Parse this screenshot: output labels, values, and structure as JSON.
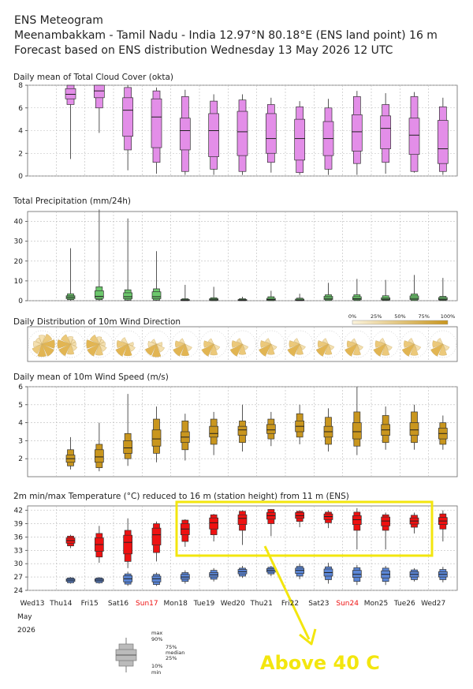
{
  "header": {
    "title": "ENS Meteogram",
    "location": "Meenambakkam - Tamil Nadu - India 12.97°N 80.18°E (ENS land point) 16 m",
    "forecast": "Forecast based on ENS distribution Wednesday 13 May 2026 12 UTC"
  },
  "annotation": {
    "text": "Above 40 C",
    "color": "#f3e60e"
  },
  "colors": {
    "cloud": "#e38ee8",
    "precip": "#6cc86c",
    "wind_speed": "#c9961e",
    "tmax": "#ee1111",
    "tmin": "#5b86d6",
    "highlight": "#f3e60e",
    "weekend": "#ee1111"
  },
  "chart_data": [
    {
      "type": "boxplot",
      "title": "Daily mean of Total Cloud Cover (okta)",
      "ylim": [
        0,
        8
      ],
      "yticks": [
        0,
        2,
        4,
        6,
        8
      ],
      "grid": true,
      "categories": [
        "Thu14",
        "Fri15",
        "Sat16",
        "Sun17",
        "Mon18",
        "Tue19",
        "Wed20",
        "Thu21",
        "Fri22",
        "Sat23",
        "Sun24",
        "Mon25",
        "Tue26",
        "Wed27"
      ],
      "stats": [
        {
          "min": 1.5,
          "p10": 6.3,
          "p25": 6.8,
          "median": 7.2,
          "p75": 7.7,
          "p90": 8.0,
          "max": 8.0
        },
        {
          "min": 3.8,
          "p10": 6.0,
          "p25": 6.9,
          "median": 7.5,
          "p75": 8.0,
          "p90": 8.0,
          "max": 8.0
        },
        {
          "min": 0.5,
          "p10": 2.3,
          "p25": 3.5,
          "median": 5.8,
          "p75": 6.9,
          "p90": 7.8,
          "max": 8.0
        },
        {
          "min": 0.2,
          "p10": 1.2,
          "p25": 2.5,
          "median": 5.2,
          "p75": 6.8,
          "p90": 7.5,
          "max": 7.8
        },
        {
          "min": 0.1,
          "p10": 0.4,
          "p25": 2.3,
          "median": 4.0,
          "p75": 5.1,
          "p90": 7.0,
          "max": 7.6
        },
        {
          "min": 0.1,
          "p10": 0.6,
          "p25": 1.7,
          "median": 4.0,
          "p75": 5.5,
          "p90": 6.6,
          "max": 7.2
        },
        {
          "min": 0.1,
          "p10": 0.4,
          "p25": 1.8,
          "median": 3.9,
          "p75": 5.7,
          "p90": 6.7,
          "max": 7.2
        },
        {
          "min": 0.3,
          "p10": 1.2,
          "p25": 2.0,
          "median": 3.3,
          "p75": 5.5,
          "p90": 6.3,
          "max": 6.9
        },
        {
          "min": 0.1,
          "p10": 0.3,
          "p25": 1.4,
          "median": 3.3,
          "p75": 5.0,
          "p90": 6.1,
          "max": 6.6
        },
        {
          "min": 0.1,
          "p10": 0.6,
          "p25": 1.8,
          "median": 3.3,
          "p75": 4.8,
          "p90": 6.0,
          "max": 6.8
        },
        {
          "min": 0.1,
          "p10": 1.1,
          "p25": 2.2,
          "median": 3.9,
          "p75": 5.4,
          "p90": 7.0,
          "max": 7.5
        },
        {
          "min": 0.2,
          "p10": 1.2,
          "p25": 2.4,
          "median": 4.2,
          "p75": 5.3,
          "p90": 6.3,
          "max": 7.3
        },
        {
          "min": 0.3,
          "p10": 0.4,
          "p25": 1.9,
          "median": 3.6,
          "p75": 5.1,
          "p90": 7.0,
          "max": 7.4
        },
        {
          "min": 0.1,
          "p10": 0.4,
          "p25": 1.1,
          "median": 2.4,
          "p75": 4.9,
          "p90": 6.1,
          "max": 6.9
        }
      ]
    },
    {
      "type": "boxplot",
      "title": "Total Precipitation (mm/24h)",
      "ylim": [
        0,
        45
      ],
      "yticks": [
        0,
        10,
        20,
        30,
        40
      ],
      "grid": true,
      "categories": [
        "Thu14",
        "Fri15",
        "Sat16",
        "Sun17",
        "Mon18",
        "Tue19",
        "Wed20",
        "Thu21",
        "Fri22",
        "Sat23",
        "Sun24",
        "Mon25",
        "Tue26",
        "Wed27"
      ],
      "stats": [
        {
          "min": 0,
          "p10": 0.5,
          "p25": 1.0,
          "median": 1.8,
          "p75": 2.5,
          "p90": 3.5,
          "max": 26.5
        },
        {
          "min": 0,
          "p10": 0.5,
          "p25": 1.2,
          "median": 2.2,
          "p75": 5.0,
          "p90": 7.0,
          "max": 46
        },
        {
          "min": 0,
          "p10": 0.3,
          "p25": 1.0,
          "median": 2.0,
          "p75": 4.0,
          "p90": 5.5,
          "max": 41.5
        },
        {
          "min": 0,
          "p10": 0.3,
          "p25": 1.0,
          "median": 2.0,
          "p75": 4.5,
          "p90": 6.0,
          "max": 25.0
        },
        {
          "min": 0,
          "p10": 0,
          "p25": 0.1,
          "median": 0.3,
          "p75": 0.6,
          "p90": 1.0,
          "max": 8.0
        },
        {
          "min": 0,
          "p10": 0,
          "p25": 0.2,
          "median": 0.5,
          "p75": 1.0,
          "p90": 1.5,
          "max": 7.0
        },
        {
          "min": 0,
          "p10": 0,
          "p25": 0.1,
          "median": 0.3,
          "p75": 0.6,
          "p90": 1.0,
          "max": 2.0
        },
        {
          "min": 0,
          "p10": 0,
          "p25": 0.2,
          "median": 0.6,
          "p75": 1.2,
          "p90": 2.0,
          "max": 5.0
        },
        {
          "min": 0,
          "p10": 0,
          "p25": 0.1,
          "median": 0.3,
          "p75": 0.8,
          "p90": 1.3,
          "max": 3.5
        },
        {
          "min": 0,
          "p10": 0.1,
          "p25": 0.6,
          "median": 1.2,
          "p75": 2.2,
          "p90": 3.0,
          "max": 9.0
        },
        {
          "min": 0,
          "p10": 0.1,
          "p25": 0.5,
          "median": 1.0,
          "p75": 2.0,
          "p90": 3.0,
          "max": 11.0
        },
        {
          "min": 0,
          "p10": 0.1,
          "p25": 0.4,
          "median": 0.8,
          "p75": 1.5,
          "p90": 2.5,
          "max": 10.5
        },
        {
          "min": 0,
          "p10": 0.1,
          "p25": 0.6,
          "median": 1.2,
          "p75": 2.4,
          "p90": 3.4,
          "max": 13.0
        },
        {
          "min": 0,
          "p10": 0.1,
          "p25": 0.4,
          "median": 0.8,
          "p75": 1.6,
          "p90": 2.2,
          "max": 11.5
        }
      ]
    },
    {
      "type": "windrose",
      "title": "Daily Distribution of 10m Wind Direction",
      "legend": [
        "0%",
        "25%",
        "50%",
        "75%",
        "100%"
      ],
      "categories": [
        "Wed13",
        "Thu14",
        "Fri15",
        "Sat16",
        "Sun17",
        "Mon18",
        "Tue19",
        "Wed20",
        "Thu21",
        "Fri22",
        "Sat23",
        "Sun24",
        "Mon25",
        "Tue26",
        "Wed27"
      ],
      "dominant_direction_deg": [
        130,
        250,
        240,
        220,
        200,
        215,
        220,
        225,
        225,
        225,
        225,
        220,
        220,
        220,
        220
      ],
      "spread": [
        1.0,
        0.55,
        0.6,
        0.4,
        0.3,
        0.3,
        0.25,
        0.25,
        0.25,
        0.25,
        0.25,
        0.25,
        0.3,
        0.3,
        0.3
      ]
    },
    {
      "type": "boxplot",
      "title": "Daily mean of 10m Wind Speed (m/s)",
      "ylim": [
        1,
        6
      ],
      "yticks": [
        2,
        3,
        4,
        5,
        6
      ],
      "grid": true,
      "categories": [
        "Thu14",
        "Fri15",
        "Sat16",
        "Sun17",
        "Mon18",
        "Tue19",
        "Wed20",
        "Thu21",
        "Fri22",
        "Sat23",
        "Sun24",
        "Mon25",
        "Tue26",
        "Wed27"
      ],
      "stats": [
        {
          "min": 1.4,
          "p10": 1.6,
          "p25": 1.8,
          "median": 2.0,
          "p75": 2.2,
          "p90": 2.5,
          "max": 3.2
        },
        {
          "min": 1.3,
          "p10": 1.5,
          "p25": 1.8,
          "median": 2.1,
          "p75": 2.5,
          "p90": 2.8,
          "max": 4.0
        },
        {
          "min": 1.6,
          "p10": 2.0,
          "p25": 2.3,
          "median": 2.6,
          "p75": 3.0,
          "p90": 3.4,
          "max": 5.6
        },
        {
          "min": 1.8,
          "p10": 2.3,
          "p25": 2.7,
          "median": 3.1,
          "p75": 3.6,
          "p90": 4.2,
          "max": 4.9
        },
        {
          "min": 1.9,
          "p10": 2.5,
          "p25": 2.9,
          "median": 3.2,
          "p75": 3.5,
          "p90": 4.1,
          "max": 4.5
        },
        {
          "min": 2.2,
          "p10": 2.8,
          "p25": 3.2,
          "median": 3.4,
          "p75": 3.8,
          "p90": 4.2,
          "max": 4.6
        },
        {
          "min": 2.4,
          "p10": 2.9,
          "p25": 3.3,
          "median": 3.6,
          "p75": 3.8,
          "p90": 4.1,
          "max": 5.0
        },
        {
          "min": 2.7,
          "p10": 3.1,
          "p25": 3.4,
          "median": 3.6,
          "p75": 3.9,
          "p90": 4.2,
          "max": 4.6
        },
        {
          "min": 2.8,
          "p10": 3.2,
          "p25": 3.5,
          "median": 3.8,
          "p75": 4.1,
          "p90": 4.5,
          "max": 5.0
        },
        {
          "min": 2.4,
          "p10": 2.8,
          "p25": 3.2,
          "median": 3.5,
          "p75": 3.8,
          "p90": 4.3,
          "max": 4.8
        },
        {
          "min": 2.2,
          "p10": 2.7,
          "p25": 3.1,
          "median": 3.5,
          "p75": 4.0,
          "p90": 4.6,
          "max": 6.0
        },
        {
          "min": 2.5,
          "p10": 2.9,
          "p25": 3.3,
          "median": 3.6,
          "p75": 3.9,
          "p90": 4.4,
          "max": 4.9
        },
        {
          "min": 2.5,
          "p10": 2.9,
          "p25": 3.3,
          "median": 3.6,
          "p75": 4.0,
          "p90": 4.6,
          "max": 5.0
        },
        {
          "min": 2.5,
          "p10": 2.8,
          "p25": 3.1,
          "median": 3.4,
          "p75": 3.7,
          "p90": 4.0,
          "max": 4.4
        }
      ]
    },
    {
      "type": "boxplot",
      "title": "2m min/max Temperature (°C) reduced to 16 m (station height) from 11 m (ENS)",
      "ylim": [
        24,
        43
      ],
      "yticks": [
        24,
        27,
        30,
        33,
        36,
        39,
        42
      ],
      "grid": true,
      "categories": [
        "Thu14",
        "Fri15",
        "Sat16",
        "Sun17",
        "Mon18",
        "Tue19",
        "Wed20",
        "Thu21",
        "Fri22",
        "Sat23",
        "Sun24",
        "Mon25",
        "Tue26",
        "Wed27"
      ],
      "series": [
        {
          "name": "max",
          "stats": [
            {
              "min": 33.5,
              "p10": 34.0,
              "p25": 34.6,
              "median": 35.2,
              "p75": 35.8,
              "p90": 36.2,
              "max": 36.5
            },
            {
              "min": 30.2,
              "p10": 31.5,
              "p25": 32.8,
              "median": 34.3,
              "p75": 35.8,
              "p90": 36.8,
              "max": 38.5
            },
            {
              "min": 29.0,
              "p10": 30.5,
              "p25": 32.2,
              "median": 34.8,
              "p75": 36.4,
              "p90": 37.5,
              "max": 40.2
            },
            {
              "min": 30.5,
              "p10": 32.5,
              "p25": 34.2,
              "median": 36.5,
              "p75": 38.0,
              "p90": 39.0,
              "max": 39.5
            },
            {
              "min": 33.8,
              "p10": 35.0,
              "p25": 36.5,
              "median": 37.8,
              "p75": 39.0,
              "p90": 39.8,
              "max": 40.0
            },
            {
              "min": 35.0,
              "p10": 36.5,
              "p25": 37.8,
              "median": 39.2,
              "p75": 40.3,
              "p90": 41.0,
              "max": 41.2
            },
            {
              "min": 34.2,
              "p10": 37.5,
              "p25": 38.8,
              "median": 40.2,
              "p75": 41.0,
              "p90": 41.8,
              "max": 42.0
            },
            {
              "min": 36.2,
              "p10": 39.0,
              "p25": 40.0,
              "median": 40.8,
              "p75": 41.5,
              "p90": 42.2,
              "max": 42.3
            },
            {
              "min": 38.2,
              "p10": 39.5,
              "p25": 40.2,
              "median": 40.8,
              "p75": 41.5,
              "p90": 41.8,
              "max": 42.0
            },
            {
              "min": 38.0,
              "p10": 39.2,
              "p25": 39.9,
              "median": 40.6,
              "p75": 41.2,
              "p90": 41.6,
              "max": 42.0
            },
            {
              "min": 33.2,
              "p10": 37.5,
              "p25": 38.8,
              "median": 39.9,
              "p75": 40.8,
              "p90": 41.6,
              "max": 42.5
            },
            {
              "min": 33.2,
              "p10": 37.5,
              "p25": 38.5,
              "median": 39.6,
              "p75": 40.5,
              "p90": 41.0,
              "max": 41.5
            },
            {
              "min": 36.8,
              "p10": 38.2,
              "p25": 38.9,
              "median": 39.6,
              "p75": 40.3,
              "p90": 40.9,
              "max": 41.5
            },
            {
              "min": 35.0,
              "p10": 37.8,
              "p25": 38.8,
              "median": 39.6,
              "p75": 40.4,
              "p90": 41.2,
              "max": 42.0
            }
          ]
        },
        {
          "name": "min",
          "stats": [
            {
              "min": 25.5,
              "p10": 25.7,
              "p25": 26.0,
              "median": 26.3,
              "p75": 26.6,
              "p90": 26.8,
              "max": 27.0
            },
            {
              "min": 25.5,
              "p10": 25.7,
              "p25": 26.0,
              "median": 26.3,
              "p75": 26.6,
              "p90": 26.8,
              "max": 27.0
            },
            {
              "min": 25.0,
              "p10": 25.4,
              "p25": 25.9,
              "median": 26.6,
              "p75": 27.3,
              "p90": 27.7,
              "max": 28.2
            },
            {
              "min": 25.0,
              "p10": 25.3,
              "p25": 25.9,
              "median": 26.6,
              "p75": 27.2,
              "p90": 27.6,
              "max": 28.0
            },
            {
              "min": 25.5,
              "p10": 26.0,
              "p25": 26.5,
              "median": 27.0,
              "p75": 27.6,
              "p90": 28.0,
              "max": 28.5
            },
            {
              "min": 26.0,
              "p10": 26.5,
              "p25": 27.0,
              "median": 27.5,
              "p75": 28.0,
              "p90": 28.5,
              "max": 29.0
            },
            {
              "min": 26.8,
              "p10": 27.2,
              "p25": 27.7,
              "median": 28.2,
              "p75": 28.7,
              "p90": 29.0,
              "max": 29.5
            },
            {
              "min": 27.2,
              "p10": 27.7,
              "p25": 28.1,
              "median": 28.5,
              "p75": 28.9,
              "p90": 29.2,
              "max": 29.5
            },
            {
              "min": 26.5,
              "p10": 27.2,
              "p25": 27.8,
              "median": 28.5,
              "p75": 29.0,
              "p90": 29.4,
              "max": 30.0
            },
            {
              "min": 25.5,
              "p10": 26.4,
              "p25": 27.2,
              "median": 28.0,
              "p75": 28.8,
              "p90": 29.3,
              "max": 30.2
            },
            {
              "min": 25.2,
              "p10": 26.0,
              "p25": 26.9,
              "median": 27.6,
              "p75": 28.5,
              "p90": 29.1,
              "max": 29.7
            },
            {
              "min": 25.2,
              "p10": 26.0,
              "p25": 26.8,
              "median": 27.6,
              "p75": 28.4,
              "p90": 29.0,
              "max": 29.5
            },
            {
              "min": 26.0,
              "p10": 26.4,
              "p25": 27.0,
              "median": 27.6,
              "p75": 28.2,
              "p90": 28.6,
              "max": 29.0
            },
            {
              "min": 25.8,
              "p10": 26.4,
              "p25": 27.0,
              "median": 27.6,
              "p75": 28.2,
              "p90": 28.7,
              "max": 29.3
            }
          ]
        }
      ]
    }
  ],
  "x_axis": {
    "labels": [
      "Wed13",
      "Thu14",
      "Fri15",
      "Sat16",
      "Sun17",
      "Mon18",
      "Tue19",
      "Wed20",
      "Thu21",
      "Fri22",
      "Sat23",
      "Sun24",
      "Mon25",
      "Tue26",
      "Wed27"
    ],
    "weekend": [
      "Sun17",
      "Sun24"
    ],
    "month": "May",
    "year": "2026"
  },
  "legend_box": {
    "labels": [
      "max",
      "90%",
      "75%",
      "median",
      "25%",
      "10%",
      "min"
    ]
  }
}
